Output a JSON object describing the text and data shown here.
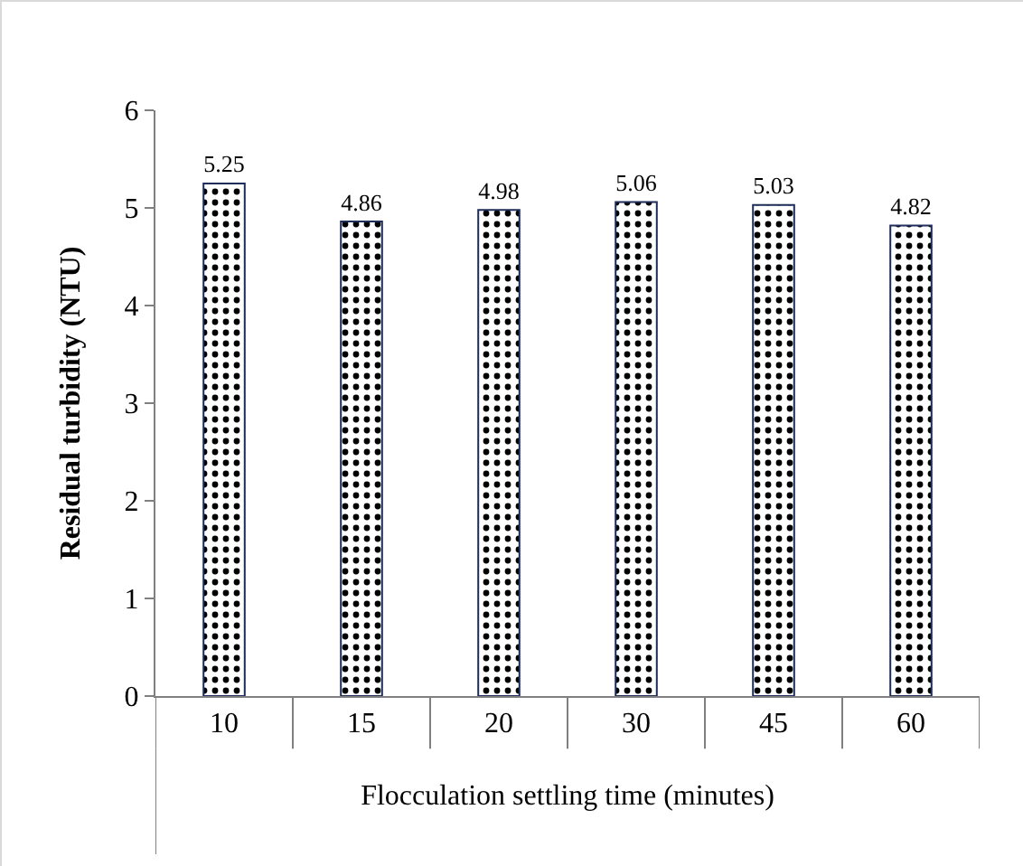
{
  "chart_data": {
    "type": "bar",
    "xlabel": "Flocculation settling time (minutes)",
    "ylabel": "Residual turbidity (NTU)",
    "categories": [
      "10",
      "15",
      "20",
      "30",
      "45",
      "60"
    ],
    "series": [
      {
        "color": "#1f2d5a",
        "values": [
          5.25,
          4.86,
          4.98,
          5.06,
          5.03,
          4.82
        ]
      }
    ],
    "ylim": [
      0,
      6
    ],
    "yticks": [
      0,
      1,
      2,
      3,
      4,
      5,
      6
    ],
    "data_labels": true,
    "grid": false,
    "legend": false
  }
}
